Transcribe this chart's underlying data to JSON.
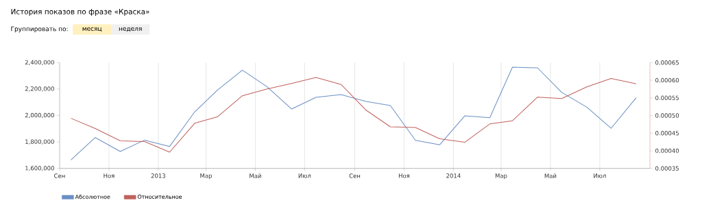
{
  "chart_data": {
    "type": "line",
    "title": "История показов по фразе «Краска»",
    "subtitle": "Группировать по:",
    "annotations": [
      "месяц",
      "неделя"
    ],
    "x": [
      "2012-09-15",
      "2012-10-15",
      "2012-11-15",
      "2012-12-15",
      "2013-01-15",
      "2013-02-15",
      "2013-03-15",
      "2013-04-15",
      "2013-05-15",
      "2013-06-15",
      "2013-07-15",
      "2013-08-15",
      "2013-09-15",
      "2013-10-15",
      "2013-11-15",
      "2013-12-15",
      "2014-01-15",
      "2014-02-15",
      "2014-03-15",
      "2014-04-15",
      "2014-05-15",
      "2014-06-15",
      "2014-07-15",
      "2014-08-15"
    ],
    "series": [
      {
        "name": "Абсолютное",
        "color": "#6a8fc3",
        "values": [
          1664000,
          1833000,
          1728000,
          1814000,
          1766000,
          2027000,
          2191000,
          2343000,
          2220000,
          2049000,
          2137000,
          2158000,
          2106000,
          2075000,
          1812000,
          1778000,
          1997000,
          1983000,
          2365000,
          2360000,
          2174000,
          2063000,
          1903000,
          2134000
        ]
      },
      {
        "name": "Относительное",
        "color": "#c0615c",
        "axis": "y2",
        "values": [
          0.000492,
          0.000463,
          0.000428,
          0.000426,
          0.000396,
          0.000478,
          0.000496,
          0.000556,
          0.000575,
          0.000591,
          0.000608,
          0.000588,
          0.000515,
          0.000468,
          0.000466,
          0.000434,
          0.000424,
          0.000476,
          0.000485,
          0.000552,
          0.000548,
          0.000581,
          0.000605,
          0.00059
        ]
      }
    ],
    "xlim": [
      "2012-09-01",
      "2014-09-01"
    ],
    "xticks": [
      {
        "value": "2012-09-01",
        "label": "Сен"
      },
      {
        "value": "2012-11-01",
        "label": "Ноя"
      },
      {
        "value": "2013-01-01",
        "label": "2013"
      },
      {
        "value": "2013-03-01",
        "label": "Мар"
      },
      {
        "value": "2013-05-01",
        "label": "Май"
      },
      {
        "value": "2013-07-01",
        "label": "Июл"
      },
      {
        "value": "2013-09-01",
        "label": "Сен"
      },
      {
        "value": "2013-11-01",
        "label": "Ноя"
      },
      {
        "value": "2014-01-01",
        "label": "2014"
      },
      {
        "value": "2014-03-01",
        "label": "Мар"
      },
      {
        "value": "2014-05-01",
        "label": "Май"
      },
      {
        "value": "2014-07-01",
        "label": "Июл"
      }
    ],
    "ylim": [
      1600000,
      2400000
    ],
    "yticks": [
      {
        "value": 1600000,
        "label": "1,600,000"
      },
      {
        "value": 1800000,
        "label": "1,800,000"
      },
      {
        "value": 2000000,
        "label": "2,000,000"
      },
      {
        "value": 2200000,
        "label": "2,200,000"
      },
      {
        "value": 2400000,
        "label": "2,400,000"
      }
    ],
    "y2lim": [
      0.00035,
      0.00065
    ],
    "y2ticks": [
      0.00035,
      {
        "value": 0.0004,
        "label": "0.00040"
      },
      0.00045,
      {
        "value": 0.0005,
        "label": "0.00050"
      },
      0.00055,
      {
        "value": 0.0006,
        "label": "0.00060"
      },
      0.00065
    ],
    "grid": "x",
    "legend": "bottom left",
    "line_style": "solid"
  }
}
